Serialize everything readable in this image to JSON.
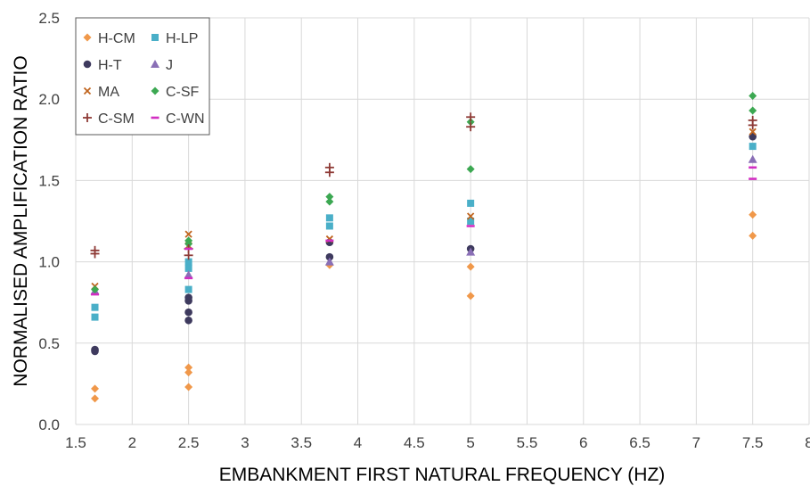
{
  "chart_data": {
    "type": "scatter",
    "xlabel": "EMBANKMENT FIRST NATURAL FREQUENCY (HZ)",
    "ylabel": "NORMALISED AMPLIFICATION RATIO",
    "xlim": [
      1.5,
      8
    ],
    "ylim": [
      0.0,
      2.5
    ],
    "x_ticks": [
      "1.5",
      "2",
      "2.5",
      "3",
      "3.5",
      "4",
      "4.5",
      "5",
      "5.5",
      "6",
      "6.5",
      "7",
      "7.5",
      "8"
    ],
    "y_ticks": [
      "0.0",
      "0.5",
      "1.0",
      "1.5",
      "2.0",
      "2.5"
    ],
    "grid": "vertical and horizontal",
    "legend_position": "top-left",
    "series": [
      {
        "name": "H-CM",
        "marker": "diamond",
        "color": "#f0984a",
        "points": [
          [
            1.67,
            0.22
          ],
          [
            1.67,
            0.16
          ],
          [
            2.5,
            0.35
          ],
          [
            2.5,
            0.32
          ],
          [
            2.5,
            0.23
          ],
          [
            3.75,
            0.98
          ],
          [
            5.0,
            0.97
          ],
          [
            5.0,
            0.79
          ],
          [
            7.5,
            1.29
          ],
          [
            7.5,
            1.16
          ]
        ]
      },
      {
        "name": "H-LP",
        "marker": "square",
        "color": "#4aafc8",
        "points": [
          [
            1.67,
            0.72
          ],
          [
            1.67,
            0.66
          ],
          [
            2.5,
            1.0
          ],
          [
            2.5,
            0.96
          ],
          [
            2.5,
            0.83
          ],
          [
            3.75,
            1.27
          ],
          [
            3.75,
            1.22
          ],
          [
            5.0,
            1.36
          ],
          [
            5.0,
            1.25
          ],
          [
            7.5,
            1.71
          ]
        ]
      },
      {
        "name": "H-T",
        "marker": "circle",
        "color": "#3e3a5e",
        "points": [
          [
            1.67,
            0.46
          ],
          [
            1.67,
            0.45
          ],
          [
            2.5,
            0.78
          ],
          [
            2.5,
            0.76
          ],
          [
            2.5,
            0.69
          ],
          [
            2.5,
            0.64
          ],
          [
            3.75,
            1.12
          ],
          [
            3.75,
            1.03
          ],
          [
            5.0,
            1.08
          ],
          [
            7.5,
            1.77
          ]
        ]
      },
      {
        "name": "J",
        "marker": "triangle",
        "color": "#8a6fb6",
        "points": [
          [
            1.67,
            0.82
          ],
          [
            2.5,
            0.92
          ],
          [
            3.75,
            1.0
          ],
          [
            5.0,
            1.06
          ],
          [
            7.5,
            1.63
          ]
        ]
      },
      {
        "name": "MA",
        "marker": "x",
        "color": "#c0651f",
        "points": [
          [
            1.67,
            0.85
          ],
          [
            2.5,
            1.17
          ],
          [
            2.5,
            1.1
          ],
          [
            3.75,
            1.14
          ],
          [
            5.0,
            1.28
          ],
          [
            7.5,
            1.8
          ]
        ]
      },
      {
        "name": "C-SF",
        "marker": "diamond",
        "color": "#3ca852",
        "points": [
          [
            1.67,
            0.83
          ],
          [
            2.5,
            1.13
          ],
          [
            2.5,
            1.11
          ],
          [
            3.75,
            1.4
          ],
          [
            3.75,
            1.37
          ],
          [
            5.0,
            1.86
          ],
          [
            5.0,
            1.57
          ],
          [
            7.5,
            2.02
          ],
          [
            7.5,
            1.93
          ]
        ]
      },
      {
        "name": "C-SM",
        "marker": "plus",
        "color": "#8e3a36",
        "points": [
          [
            1.67,
            1.07
          ],
          [
            1.67,
            1.05
          ],
          [
            2.5,
            1.08
          ],
          [
            2.5,
            1.04
          ],
          [
            3.75,
            1.58
          ],
          [
            3.75,
            1.55
          ],
          [
            5.0,
            1.89
          ],
          [
            5.0,
            1.83
          ],
          [
            7.5,
            1.87
          ],
          [
            7.5,
            1.84
          ]
        ]
      },
      {
        "name": "C-WN",
        "marker": "dash",
        "color": "#d22ec2",
        "points": [
          [
            1.67,
            0.8
          ],
          [
            2.5,
            1.08
          ],
          [
            2.5,
            0.9
          ],
          [
            3.75,
            1.13
          ],
          [
            5.0,
            1.22
          ],
          [
            7.5,
            1.58
          ],
          [
            7.5,
            1.51
          ]
        ]
      }
    ]
  }
}
